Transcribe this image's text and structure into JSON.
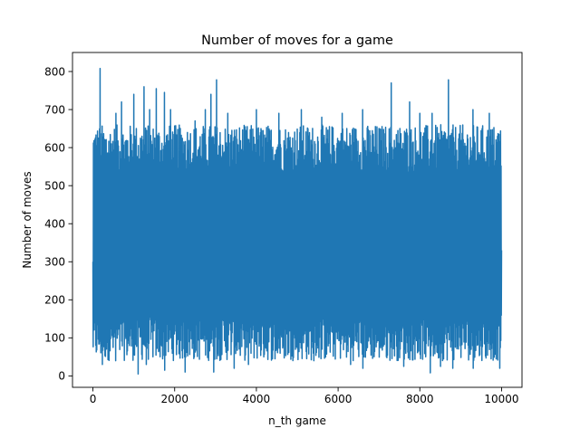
{
  "chart_data": {
    "type": "line",
    "title": "Number of moves for a game",
    "xlabel": "n_th game",
    "ylabel": "Number of moves",
    "xlim": [
      -500,
      10500
    ],
    "ylim": [
      -30,
      850
    ],
    "x_ticks": [
      0,
      2000,
      4000,
      6000,
      8000,
      10000
    ],
    "y_ticks": [
      0,
      100,
      200,
      300,
      400,
      500,
      600,
      700,
      800
    ],
    "grid": false,
    "legend": "none",
    "series": [
      {
        "color": "#1f77b4",
        "x_range": [
          0,
          10000
        ],
        "n_points": 10000,
        "typical_min": 60,
        "typical_max": 650,
        "overall_min": 5,
        "overall_max": 808,
        "peaks": [
          {
            "x": 170,
            "y": 808
          },
          {
            "x": 560,
            "y": 690
          },
          {
            "x": 700,
            "y": 720
          },
          {
            "x": 1000,
            "y": 740
          },
          {
            "x": 1250,
            "y": 760
          },
          {
            "x": 1380,
            "y": 700
          },
          {
            "x": 1550,
            "y": 755
          },
          {
            "x": 1750,
            "y": 745
          },
          {
            "x": 1900,
            "y": 700
          },
          {
            "x": 2500,
            "y": 670
          },
          {
            "x": 2750,
            "y": 700
          },
          {
            "x": 2880,
            "y": 740
          },
          {
            "x": 3020,
            "y": 778
          },
          {
            "x": 3300,
            "y": 690
          },
          {
            "x": 4000,
            "y": 700
          },
          {
            "x": 4550,
            "y": 690
          },
          {
            "x": 5100,
            "y": 700
          },
          {
            "x": 5600,
            "y": 680
          },
          {
            "x": 6100,
            "y": 690
          },
          {
            "x": 6600,
            "y": 700
          },
          {
            "x": 7300,
            "y": 770
          },
          {
            "x": 7750,
            "y": 720
          },
          {
            "x": 8000,
            "y": 690
          },
          {
            "x": 8300,
            "y": 690
          },
          {
            "x": 8700,
            "y": 778
          },
          {
            "x": 9300,
            "y": 700
          },
          {
            "x": 9700,
            "y": 690
          },
          {
            "x": 9930,
            "y": 635
          }
        ],
        "troughs": [
          {
            "x": 230,
            "y": 30
          },
          {
            "x": 550,
            "y": 40
          },
          {
            "x": 1100,
            "y": 5
          },
          {
            "x": 1300,
            "y": 30
          },
          {
            "x": 1750,
            "y": 15
          },
          {
            "x": 2250,
            "y": 10
          },
          {
            "x": 2950,
            "y": 10
          },
          {
            "x": 3450,
            "y": 20
          },
          {
            "x": 3800,
            "y": 30
          },
          {
            "x": 4450,
            "y": 45
          },
          {
            "x": 5400,
            "y": 40
          },
          {
            "x": 6300,
            "y": 30
          },
          {
            "x": 6600,
            "y": 20
          },
          {
            "x": 7600,
            "y": 25
          },
          {
            "x": 8250,
            "y": 8
          },
          {
            "x": 8500,
            "y": 25
          },
          {
            "x": 8800,
            "y": 20
          },
          {
            "x": 9300,
            "y": 20
          },
          {
            "x": 9950,
            "y": 20
          }
        ]
      }
    ]
  }
}
